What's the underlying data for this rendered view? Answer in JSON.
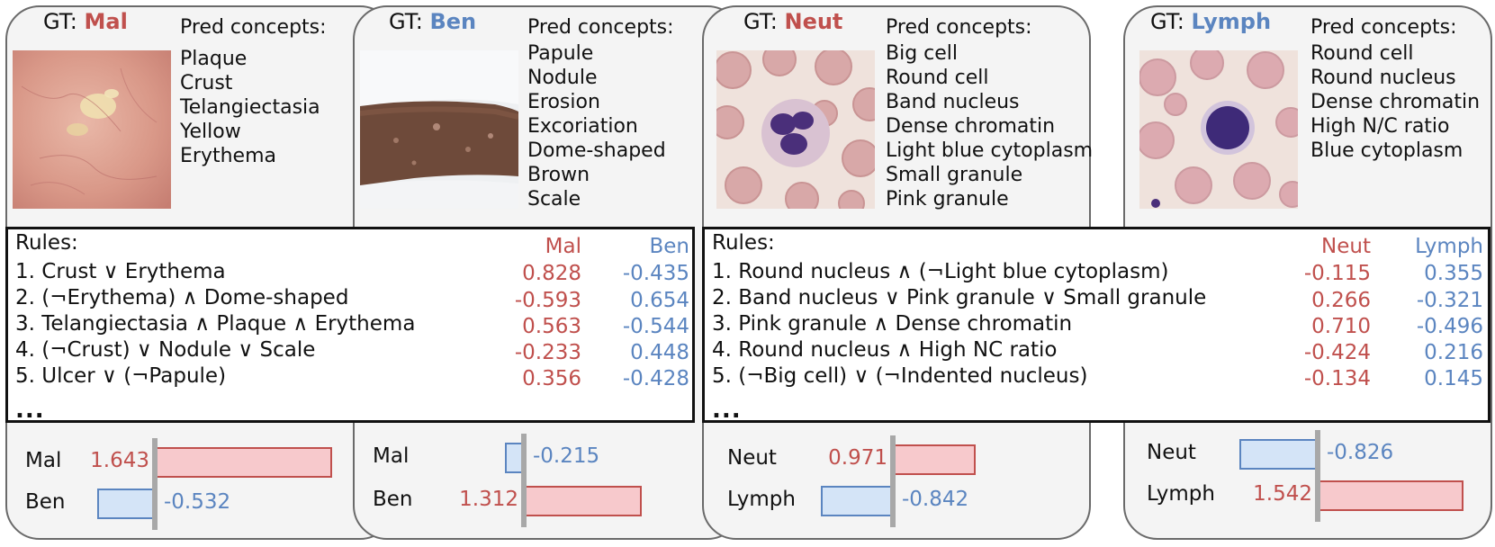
{
  "panels": [
    {
      "gt_prefix": "GT: ",
      "gt_label": "Mal",
      "gt_color": "#c0504d",
      "pred_title": "Pred concepts:",
      "concepts": [
        "Plaque",
        "Crust",
        "Telangiectasia",
        "Yellow",
        "Erythema"
      ],
      "image_kind": "skin lesion photo"
    },
    {
      "gt_prefix": "GT: ",
      "gt_label": "Ben",
      "gt_color": "#5b85c0",
      "pred_title": "Pred concepts:",
      "concepts": [
        "Papule",
        "Nodule",
        "Erosion",
        "Excoriation",
        "Dome-shaped",
        "Brown",
        "Scale"
      ],
      "image_kind": "forearm photo"
    },
    {
      "gt_prefix": "GT: ",
      "gt_label": "Neut",
      "gt_color": "#c0504d",
      "pred_title": "Pred concepts:",
      "concepts": [
        "Big cell",
        "Round cell",
        "Band nucleus",
        "Dense chromatin",
        "Light blue cytoplasm",
        "Small granule",
        "Pink granule"
      ],
      "image_kind": "blood smear neutrophil"
    },
    {
      "gt_prefix": "GT: ",
      "gt_label": "Lymph",
      "gt_color": "#5b85c0",
      "pred_title": "Pred concepts:",
      "concepts": [
        "Round cell",
        "Round nucleus",
        "Dense chromatin",
        "High N/C ratio",
        "Blue cytoplasm"
      ],
      "image_kind": "blood smear lymphocyte"
    }
  ],
  "rule_boxes": [
    {
      "heading": "Rules:",
      "class_a": "Mal",
      "class_b": "Ben",
      "rules": [
        {
          "text": "1. Crust ∨ Erythema",
          "a": "0.828",
          "b": "-0.435"
        },
        {
          "text": "2. (¬Erythema) ∧ Dome-shaped",
          "a": "-0.593",
          "b": "0.654"
        },
        {
          "text": "3. Telangiectasia ∧ Plaque ∧ Erythema",
          "a": "0.563",
          "b": "-0.544"
        },
        {
          "text": "4. (¬Crust) ∨ Nodule ∨ Scale",
          "a": "-0.233",
          "b": "0.448"
        },
        {
          "text": "5. Ulcer ∨ (¬Papule)",
          "a": "0.356",
          "b": "-0.428"
        }
      ],
      "ellipsis": "..."
    },
    {
      "heading": "Rules:",
      "class_a": "Neut",
      "class_b": "Lymph",
      "rules": [
        {
          "text": "1. Round nucleus ∧ (¬Light blue cytoplasm)",
          "a": "-0.115",
          "b": "0.355"
        },
        {
          "text": "2. Band nucleus ∨ Pink granule ∨ Small granule",
          "a": "0.266",
          "b": "-0.321"
        },
        {
          "text": "3. Pink granule ∧ Dense chromatin",
          "a": "0.710",
          "b": "-0.496"
        },
        {
          "text": "4. Round nucleus ∧ High NC ratio",
          "a": "-0.424",
          "b": "0.216"
        },
        {
          "text": "5. (¬Big cell) ∨ (¬Indented nucleus)",
          "a": "-0.134",
          "b": "0.145"
        }
      ],
      "ellipsis": "..."
    }
  ],
  "scores": [
    {
      "top_label": "Mal",
      "top_value": 1.643,
      "top_text": "1.643",
      "bottom_label": "Ben",
      "bottom_value": -0.532,
      "bottom_text": "-0.532"
    },
    {
      "top_label": "Mal",
      "top_value": -0.215,
      "top_text": "-0.215",
      "bottom_label": "Ben",
      "bottom_value": 1.312,
      "bottom_text": "1.312"
    },
    {
      "top_label": "Neut",
      "top_value": 0.971,
      "top_text": "0.971",
      "bottom_label": "Lymph",
      "bottom_value": -0.842,
      "bottom_text": "-0.842"
    },
    {
      "top_label": "Neut",
      "top_value": -0.826,
      "top_text": "-0.826",
      "bottom_label": "Lymph",
      "bottom_value": 1.542,
      "bottom_text": "1.542"
    }
  ],
  "colors": {
    "positive": "#c0504d",
    "negative": "#5b85c0"
  }
}
